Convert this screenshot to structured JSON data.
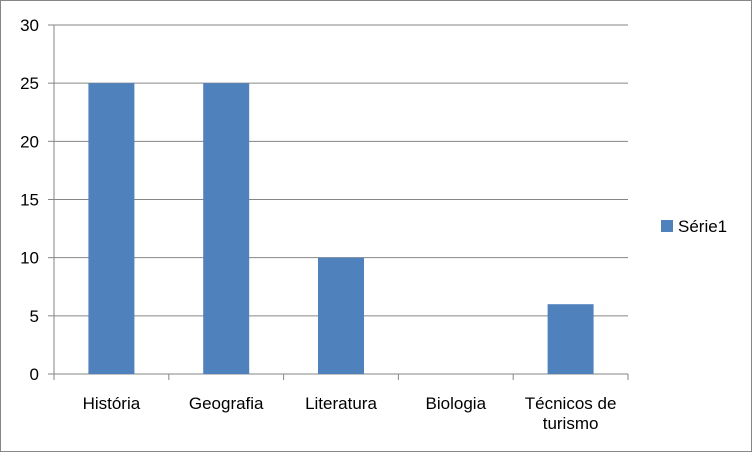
{
  "chart_data": {
    "type": "bar",
    "categories": [
      "História",
      "Geografia",
      "Literatura",
      "Biologia",
      "Técnicos de turismo"
    ],
    "category_label_lines": [
      [
        "História"
      ],
      [
        "Geografia"
      ],
      [
        "Literatura"
      ],
      [
        "Biologia"
      ],
      [
        "Técnicos de",
        "turismo"
      ]
    ],
    "series": [
      {
        "name": "Série1",
        "values": [
          25,
          25,
          10,
          0,
          6
        ],
        "color": "#4F81BD"
      }
    ],
    "ylim": [
      0,
      30
    ],
    "yticks": [
      "0",
      "5",
      "10",
      "15",
      "20",
      "25",
      "30"
    ],
    "grid": true,
    "legend": "right"
  }
}
